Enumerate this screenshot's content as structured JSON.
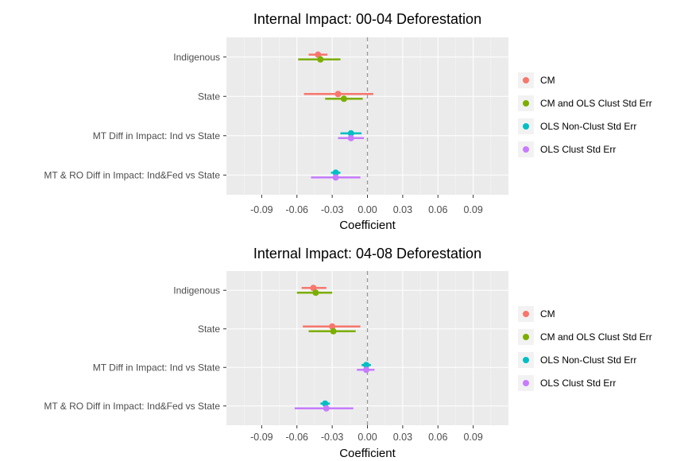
{
  "chart_data": [
    {
      "type": "errorbar",
      "title": "Internal Impact: 00-04 Deforestation",
      "xlabel": "Coefficient",
      "ylabel": "",
      "xlim": [
        -0.12,
        0.12
      ],
      "xticks": [
        -0.09,
        -0.06,
        -0.03,
        0.0,
        0.03,
        0.06,
        0.09
      ],
      "xtick_labels": [
        "-0.09",
        "-0.06",
        "-0.03",
        "0.00",
        "0.03",
        "0.06",
        "0.09"
      ],
      "reference_line": 0,
      "grid": true,
      "legend_position": "right",
      "categories": [
        "Indigenous",
        "State",
        "MT Diff in Impact: Ind vs State",
        "MT & RO Diff in Impact: Ind&Fed vs State"
      ],
      "series": [
        {
          "name": "CM",
          "color": "#F8766D",
          "estimates": [
            -0.042,
            -0.025,
            null,
            null
          ],
          "ci_low": [
            -0.05,
            -0.054,
            null,
            null
          ],
          "ci_high": [
            -0.034,
            0.005,
            null,
            null
          ]
        },
        {
          "name": "CM and OLS Clust Std Err",
          "color": "#7CAE00",
          "estimates": [
            -0.04,
            -0.02,
            null,
            null
          ],
          "ci_low": [
            -0.059,
            -0.036,
            null,
            null
          ],
          "ci_high": [
            -0.023,
            -0.004,
            null,
            null
          ]
        },
        {
          "name": "OLS Non-Clust Std Err",
          "color": "#00BFC4",
          "estimates": [
            null,
            null,
            -0.014,
            -0.027
          ],
          "ci_low": [
            null,
            null,
            -0.023,
            -0.031
          ],
          "ci_high": [
            null,
            null,
            -0.005,
            -0.023
          ]
        },
        {
          "name": "OLS Clust Std Err",
          "color": "#C77CFF",
          "estimates": [
            null,
            null,
            -0.014,
            -0.027
          ],
          "ci_low": [
            null,
            null,
            -0.025,
            -0.048
          ],
          "ci_high": [
            null,
            null,
            -0.003,
            -0.006
          ]
        }
      ]
    },
    {
      "type": "errorbar",
      "title": "Internal Impact: 04-08 Deforestation",
      "xlabel": "Coefficient",
      "ylabel": "",
      "xlim": [
        -0.12,
        0.12
      ],
      "xticks": [
        -0.09,
        -0.06,
        -0.03,
        0.0,
        0.03,
        0.06,
        0.09
      ],
      "xtick_labels": [
        "-0.09",
        "-0.06",
        "-0.03",
        "0.00",
        "0.03",
        "0.06",
        "0.09"
      ],
      "reference_line": 0,
      "grid": true,
      "legend_position": "right",
      "categories": [
        "Indigenous",
        "State",
        "MT Diff in Impact: Ind vs State",
        "MT & RO Diff in Impact: Ind&Fed vs State"
      ],
      "series": [
        {
          "name": "CM",
          "color": "#F8766D",
          "estimates": [
            -0.046,
            -0.03,
            null,
            null
          ],
          "ci_low": [
            -0.056,
            -0.055,
            null,
            null
          ],
          "ci_high": [
            -0.035,
            -0.006,
            null,
            null
          ]
        },
        {
          "name": "CM and OLS Clust Std Err",
          "color": "#7CAE00",
          "estimates": [
            -0.044,
            -0.029,
            null,
            null
          ],
          "ci_low": [
            -0.06,
            -0.05,
            null,
            null
          ],
          "ci_high": [
            -0.03,
            -0.01,
            null,
            null
          ]
        },
        {
          "name": "OLS Non-Clust Std Err",
          "color": "#00BFC4",
          "estimates": [
            null,
            null,
            -0.001,
            -0.036
          ],
          "ci_low": [
            null,
            null,
            -0.005,
            -0.04
          ],
          "ci_high": [
            null,
            null,
            0.003,
            -0.032
          ]
        },
        {
          "name": "OLS Clust Std Err",
          "color": "#C77CFF",
          "estimates": [
            null,
            null,
            -0.001,
            -0.035
          ],
          "ci_low": [
            null,
            null,
            -0.009,
            -0.062
          ],
          "ci_high": [
            null,
            null,
            0.006,
            -0.012
          ]
        }
      ]
    }
  ]
}
